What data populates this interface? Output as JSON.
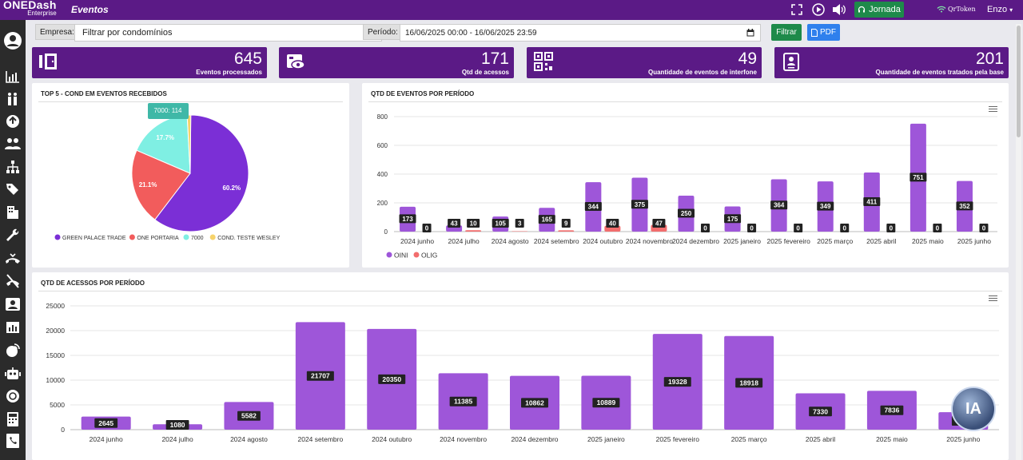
{
  "header": {
    "logo_main": "ONEDash",
    "logo_sub": "Enterprise",
    "page_title": "Eventos",
    "jornada_label": "Jornada",
    "qrtoken_label": "QrToken",
    "user_label": "Enzo"
  },
  "sidebar": {
    "items": [
      "user-icon",
      "chart-icon",
      "people-icon",
      "recycle-icon",
      "group-icon",
      "org-icon",
      "tag-icon",
      "building-icon",
      "wrench-icon",
      "phone-transfer-icon",
      "phone-off-icon",
      "person-card-icon",
      "report-icon",
      "tracking-icon",
      "robot-icon",
      "globe-icon",
      "calculator-icon",
      "phone-book-icon"
    ]
  },
  "filters": {
    "empresa_label": "Empresa:",
    "empresa_value": "Filtrar por condomínios",
    "periodo_label": "Período:",
    "periodo_value": "16/06/2025 00:00 - 16/06/2025 23:59",
    "filter_button": "Filtrar",
    "pdf_button": "PDF"
  },
  "stats": [
    {
      "value": "645",
      "label": "Eventos processados",
      "icon": "door-icon"
    },
    {
      "value": "171",
      "label": "Qtd de acessos",
      "icon": "card-eye-icon"
    },
    {
      "value": "49",
      "label": "Quantidade de eventos de interfone",
      "icon": "qr-icon"
    },
    {
      "value": "201",
      "label": "Quantidade de eventos tratados pela base",
      "icon": "clipboard-icon"
    }
  ],
  "colors": {
    "brand": "#5b1a86",
    "bar_purple": "#9e56d9",
    "green_button": "#1e8a4a",
    "blue_button": "#2f80ed"
  },
  "pie_panel": {
    "title": "TOP 5 - COND EM EVENTOS RECEBIDOS",
    "tooltip": "7000:  114"
  },
  "events_panel": {
    "title": "QTD DE EVENTOS POR PERÍODO"
  },
  "access_panel": {
    "title": "QTD DE ACESSOS POR PERÍODO"
  },
  "chart_data": [
    {
      "type": "pie",
      "labels": [
        "GREEN PALACE TRADE",
        "ONE PORTARIA",
        "7000",
        "COND. TESTE WESLEY"
      ],
      "values": [
        60.2,
        21.1,
        17.7,
        1.0
      ],
      "value_labels": [
        "60.2%",
        "21.1%",
        "17.7%",
        ""
      ],
      "colors": [
        "#7b2fd6",
        "#f25c5c",
        "#7fefe3",
        "#f6d36b"
      ],
      "legend": "bottom"
    },
    {
      "type": "bar",
      "categories": [
        "2024 junho",
        "2024 julho",
        "2024 agosto",
        "2024 setembro",
        "2024 outubro",
        "2024 novembro",
        "2024 dezembro",
        "2025 janeiro",
        "2025 fevereiro",
        "2025 março",
        "2025 abril",
        "2025 maio",
        "2025 junho"
      ],
      "series": [
        {
          "name": "OINI",
          "color": "#9e56d9",
          "values": [
            173,
            43,
            105,
            165,
            344,
            375,
            250,
            175,
            364,
            349,
            411,
            751,
            352
          ]
        },
        {
          "name": "OLIG",
          "color": "#f26d6d",
          "values": [
            0,
            10,
            3,
            9,
            40,
            47,
            0,
            0,
            0,
            0,
            0,
            0,
            0
          ]
        }
      ],
      "ylim": [
        0,
        800
      ],
      "yticks": [
        0,
        200,
        400,
        600,
        800
      ],
      "legend": "bottom-left",
      "grid": true
    },
    {
      "type": "bar",
      "categories": [
        "2024 junho",
        "2024 julho",
        "2024 agosto",
        "2024 setembro",
        "2024 outubro",
        "2024 novembro",
        "2024 dezembro",
        "2025 janeiro",
        "2025 fevereiro",
        "2025 março",
        "2025 abril",
        "2025 maio",
        "2025 junho"
      ],
      "values": [
        2645,
        1080,
        5582,
        21707,
        20350,
        11385,
        10862,
        10889,
        19328,
        18918,
        7330,
        7836,
        3533
      ],
      "value_labels": [
        "2645",
        "1080",
        "5582",
        "21707",
        "20350",
        "11385",
        "10862",
        "10889",
        "19328",
        "18918",
        "7330",
        "7836",
        "3533"
      ],
      "ylim": [
        0,
        25000
      ],
      "yticks": [
        0,
        5000,
        10000,
        15000,
        20000,
        25000
      ],
      "grid": true
    }
  ],
  "assistant_badge": "IA"
}
